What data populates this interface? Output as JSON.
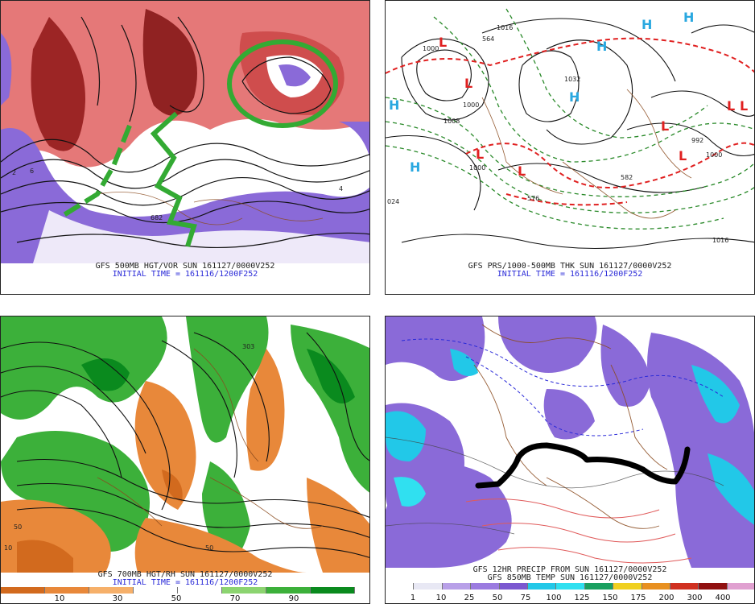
{
  "panels": {
    "top_left": {
      "caption": "GFS 500MB HGT/VOR SUN 161127/0000V252",
      "initial_time": "INITIAL TIME = 161116/1200F252",
      "contour_labels": [
        "2",
        "6",
        "682",
        "4"
      ]
    },
    "top_right": {
      "caption": "GFS PRS/1000-500MB THK SUN 161127/0000V252",
      "initial_time": "INITIAL TIME = 161116/1200F252",
      "pressure_labels": [
        "1016",
        "1000",
        "1000",
        "1008",
        "1032",
        "1000",
        "992",
        "1000",
        "024",
        "1016",
        "564",
        "582",
        "576"
      ],
      "high_symbol": "H",
      "low_symbol": "L"
    },
    "bottom_left": {
      "caption": "GFS 700MB HGT/RH SUN 161127/0000V252",
      "initial_time": "INITIAL TIME = 161116/1200F252",
      "legend_ticks": [
        "10",
        "30",
        "50",
        "70",
        "90"
      ],
      "legend_colors": [
        "#d26a1e",
        "#e8883a",
        "#f6b06a",
        "#ffffff",
        "#ffffff",
        "#8cd470",
        "#3cb03a",
        "#0a8a1e"
      ],
      "contour_labels": [
        "10",
        "50",
        "50",
        "303"
      ]
    },
    "bottom_right": {
      "caption_line1": "GFS 12HR PRECIP FROM SUN 161127/0000V252",
      "caption_line2": "GFS 850MB TEMP SUN 161127/0000V252",
      "legend_ticks": [
        "1",
        "10",
        "25",
        "50",
        "75",
        "100",
        "125",
        "150",
        "175",
        "200",
        "300",
        "400"
      ],
      "legend_colors": [
        "#ffffff",
        "#e8e8f4",
        "#b8a0e8",
        "#9b7be0",
        "#7b58d0",
        "#22c8e8",
        "#30e0f0",
        "#1aa060",
        "#f0d020",
        "#e89020",
        "#d03020",
        "#901010",
        "#e0a0d0"
      ]
    }
  }
}
